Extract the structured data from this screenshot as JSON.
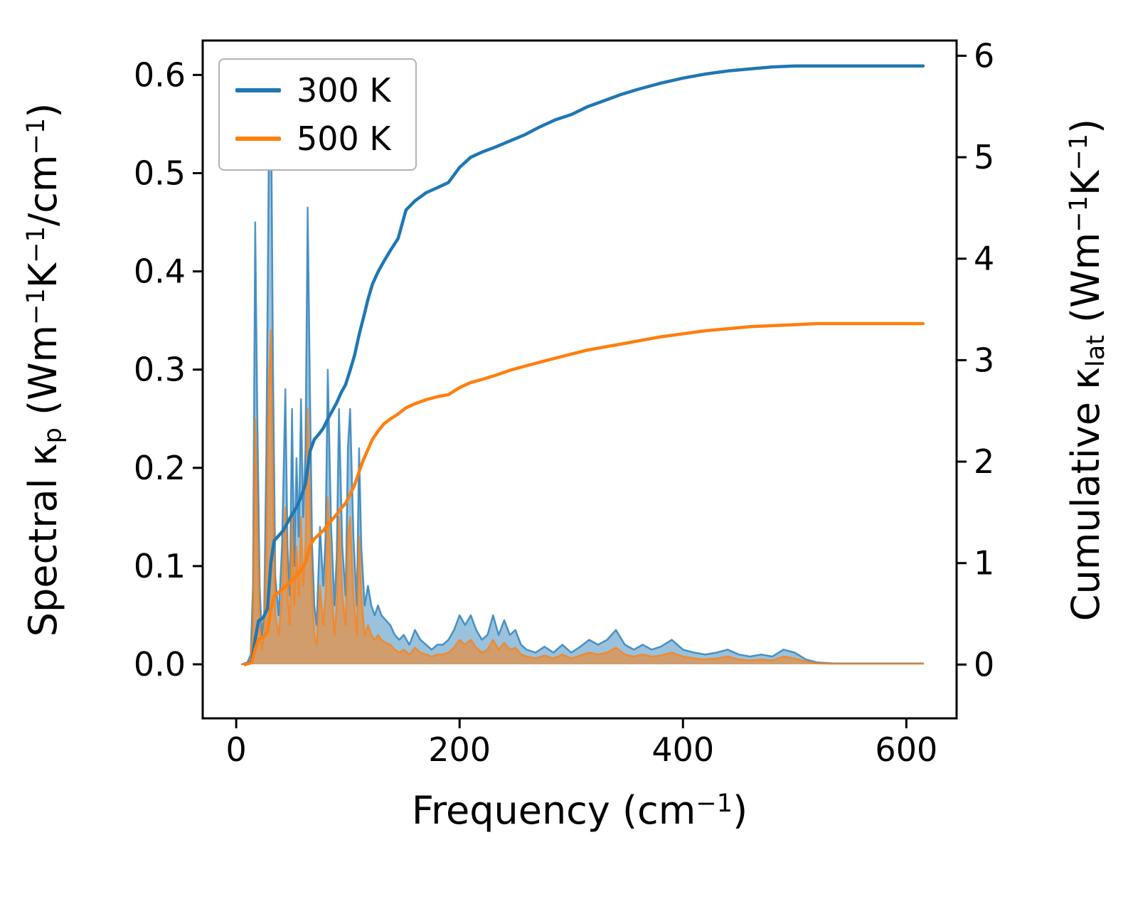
{
  "figure": {
    "xlabel": "Frequency (cm^−1^)",
    "ylabel_left": "Spectral κ_p_ (Wm^−1^K^−1^/cm^−1^)",
    "ylabel_right": "Cumulative κ_lat_ (Wm^−1^K^−1^)",
    "legend": [
      {
        "label": "300 K",
        "color": "#1f77b4"
      },
      {
        "label": "500 K",
        "color": "#ff7f0e"
      }
    ]
  },
  "chart_data": {
    "type": "line",
    "title": "",
    "xlabel": "Frequency (cm−1)",
    "ylabel_left": "Spectral κp (Wm−1K−1/cm−1)",
    "ylabel_right": "Cumulative κlat (Wm−1K−1)",
    "legend_position": "upper left",
    "grid": false,
    "xlim": [
      -30,
      645
    ],
    "ylim_left": [
      -0.055,
      0.635
    ],
    "ylim_right": [
      -0.53,
      6.15
    ],
    "x_ticks": [
      0,
      200,
      400,
      600
    ],
    "x_tick_labels": [
      "0",
      "200",
      "400",
      "600"
    ],
    "y_ticks_left": [
      0.0,
      0.1,
      0.2,
      0.3,
      0.4,
      0.5,
      0.6
    ],
    "y_tick_labels_left": [
      "0.0",
      "0.1",
      "0.2",
      "0.3",
      "0.4",
      "0.5",
      "0.6"
    ],
    "y_ticks_right": [
      0,
      1,
      2,
      3,
      4,
      5,
      6
    ],
    "y_tick_labels_right": [
      "0",
      "1",
      "2",
      "3",
      "4",
      "5",
      "6"
    ],
    "colors": {
      "300K": "#1f77b4",
      "500K": "#ff7f0e"
    },
    "spectral": {
      "axis": "left",
      "style": "filled-line",
      "x": [
        5,
        10,
        13,
        15,
        17,
        19,
        21,
        23,
        25,
        27,
        29,
        31,
        33,
        35,
        38,
        41,
        44,
        46,
        48,
        50,
        52,
        54,
        56,
        58,
        60,
        62,
        64,
        66,
        68,
        70,
        72,
        75,
        78,
        80,
        82,
        85,
        88,
        90,
        92,
        95,
        98,
        100,
        102,
        105,
        108,
        110,
        112,
        115,
        118,
        121,
        124,
        127,
        130,
        134,
        138,
        142,
        146,
        150,
        155,
        160,
        165,
        170,
        175,
        180,
        185,
        190,
        195,
        200,
        205,
        210,
        215,
        220,
        225,
        230,
        235,
        240,
        245,
        250,
        255,
        260,
        268,
        276,
        284,
        292,
        300,
        308,
        316,
        324,
        332,
        340,
        348,
        356,
        364,
        372,
        380,
        390,
        400,
        410,
        420,
        430,
        440,
        450,
        460,
        470,
        480,
        490,
        500,
        510,
        520,
        535,
        550,
        570,
        590,
        615
      ],
      "series": [
        {
          "name": "300 K",
          "color": "#1f77b4",
          "values": [
            0,
            0.002,
            0.01,
            0.08,
            0.45,
            0.25,
            0.08,
            0.03,
            0.05,
            0.22,
            0.5,
            0.61,
            0.3,
            0.09,
            0.05,
            0.12,
            0.28,
            0.12,
            0.07,
            0.26,
            0.1,
            0.21,
            0.13,
            0.27,
            0.15,
            0.22,
            0.465,
            0.28,
            0.12,
            0.06,
            0.04,
            0.14,
            0.08,
            0.13,
            0.3,
            0.14,
            0.06,
            0.11,
            0.26,
            0.12,
            0.07,
            0.22,
            0.26,
            0.13,
            0.06,
            0.22,
            0.12,
            0.06,
            0.08,
            0.06,
            0.05,
            0.06,
            0.05,
            0.045,
            0.04,
            0.03,
            0.025,
            0.03,
            0.02,
            0.035,
            0.025,
            0.02,
            0.015,
            0.02,
            0.02,
            0.025,
            0.035,
            0.05,
            0.04,
            0.05,
            0.035,
            0.025,
            0.03,
            0.05,
            0.03,
            0.045,
            0.03,
            0.035,
            0.02,
            0.015,
            0.012,
            0.018,
            0.012,
            0.02,
            0.012,
            0.018,
            0.025,
            0.02,
            0.025,
            0.035,
            0.02,
            0.015,
            0.02,
            0.015,
            0.018,
            0.025,
            0.015,
            0.012,
            0.01,
            0.012,
            0.015,
            0.01,
            0.008,
            0.01,
            0.008,
            0.015,
            0.012,
            0.005,
            0.002,
            0.001,
            0.001,
            0.001,
            0.001,
            0.001
          ]
        },
        {
          "name": "500 K",
          "color": "#ff7f0e",
          "values": [
            0,
            0.001,
            0.005,
            0.04,
            0.25,
            0.14,
            0.04,
            0.015,
            0.03,
            0.12,
            0.28,
            0.34,
            0.17,
            0.05,
            0.03,
            0.07,
            0.16,
            0.07,
            0.04,
            0.15,
            0.06,
            0.12,
            0.07,
            0.15,
            0.08,
            0.12,
            0.26,
            0.15,
            0.07,
            0.03,
            0.02,
            0.08,
            0.04,
            0.07,
            0.17,
            0.08,
            0.03,
            0.06,
            0.15,
            0.07,
            0.04,
            0.13,
            0.15,
            0.07,
            0.03,
            0.13,
            0.07,
            0.03,
            0.04,
            0.03,
            0.025,
            0.03,
            0.025,
            0.022,
            0.02,
            0.015,
            0.012,
            0.015,
            0.01,
            0.017,
            0.012,
            0.01,
            0.008,
            0.01,
            0.01,
            0.012,
            0.017,
            0.025,
            0.02,
            0.025,
            0.017,
            0.012,
            0.015,
            0.025,
            0.015,
            0.022,
            0.015,
            0.017,
            0.01,
            0.008,
            0.006,
            0.009,
            0.006,
            0.01,
            0.006,
            0.009,
            0.012,
            0.01,
            0.012,
            0.017,
            0.01,
            0.008,
            0.01,
            0.008,
            0.009,
            0.012,
            0.008,
            0.006,
            0.005,
            0.006,
            0.008,
            0.005,
            0.004,
            0.005,
            0.004,
            0.008,
            0.006,
            0.003,
            0.001,
            0.0005,
            0.0005,
            0.0005,
            0.0005,
            0.0005
          ]
        }
      ]
    },
    "cumulative": {
      "axis": "right",
      "style": "line",
      "x": [
        8,
        14,
        17,
        20,
        24,
        28,
        31,
        34,
        38,
        42,
        46,
        50,
        54,
        58,
        62,
        66,
        70,
        74,
        78,
        82,
        86,
        90,
        94,
        98,
        102,
        106,
        110,
        114,
        118,
        122,
        127,
        132,
        138,
        145,
        152,
        160,
        170,
        180,
        190,
        200,
        210,
        220,
        232,
        245,
        258,
        272,
        286,
        300,
        315,
        330,
        345,
        360,
        380,
        400,
        420,
        440,
        460,
        480,
        500,
        520,
        545,
        570,
        615
      ],
      "series": [
        {
          "name": "300 K",
          "color": "#1f77b4",
          "values": [
            0,
            0.03,
            0.25,
            0.43,
            0.46,
            0.55,
            1.0,
            1.22,
            1.27,
            1.32,
            1.4,
            1.48,
            1.55,
            1.65,
            1.78,
            2.1,
            2.22,
            2.27,
            2.33,
            2.42,
            2.5,
            2.58,
            2.68,
            2.76,
            2.9,
            3.05,
            3.25,
            3.42,
            3.6,
            3.75,
            3.87,
            3.97,
            4.08,
            4.2,
            4.48,
            4.57,
            4.65,
            4.7,
            4.75,
            4.9,
            5.0,
            5.05,
            5.1,
            5.16,
            5.22,
            5.3,
            5.37,
            5.42,
            5.5,
            5.56,
            5.62,
            5.67,
            5.73,
            5.78,
            5.82,
            5.85,
            5.87,
            5.89,
            5.9,
            5.9,
            5.9,
            5.9,
            5.9
          ]
        },
        {
          "name": "500 K",
          "color": "#ff7f0e",
          "values": [
            0,
            0.02,
            0.15,
            0.25,
            0.27,
            0.32,
            0.55,
            0.68,
            0.71,
            0.75,
            0.79,
            0.83,
            0.88,
            0.93,
            1.0,
            1.17,
            1.24,
            1.28,
            1.32,
            1.38,
            1.43,
            1.48,
            1.54,
            1.59,
            1.68,
            1.77,
            1.9,
            2.02,
            2.12,
            2.22,
            2.3,
            2.37,
            2.42,
            2.47,
            2.53,
            2.57,
            2.61,
            2.64,
            2.66,
            2.73,
            2.78,
            2.81,
            2.85,
            2.9,
            2.94,
            2.98,
            3.02,
            3.06,
            3.1,
            3.13,
            3.16,
            3.19,
            3.23,
            3.26,
            3.29,
            3.31,
            3.33,
            3.34,
            3.35,
            3.36,
            3.36,
            3.36,
            3.36
          ]
        }
      ]
    }
  }
}
